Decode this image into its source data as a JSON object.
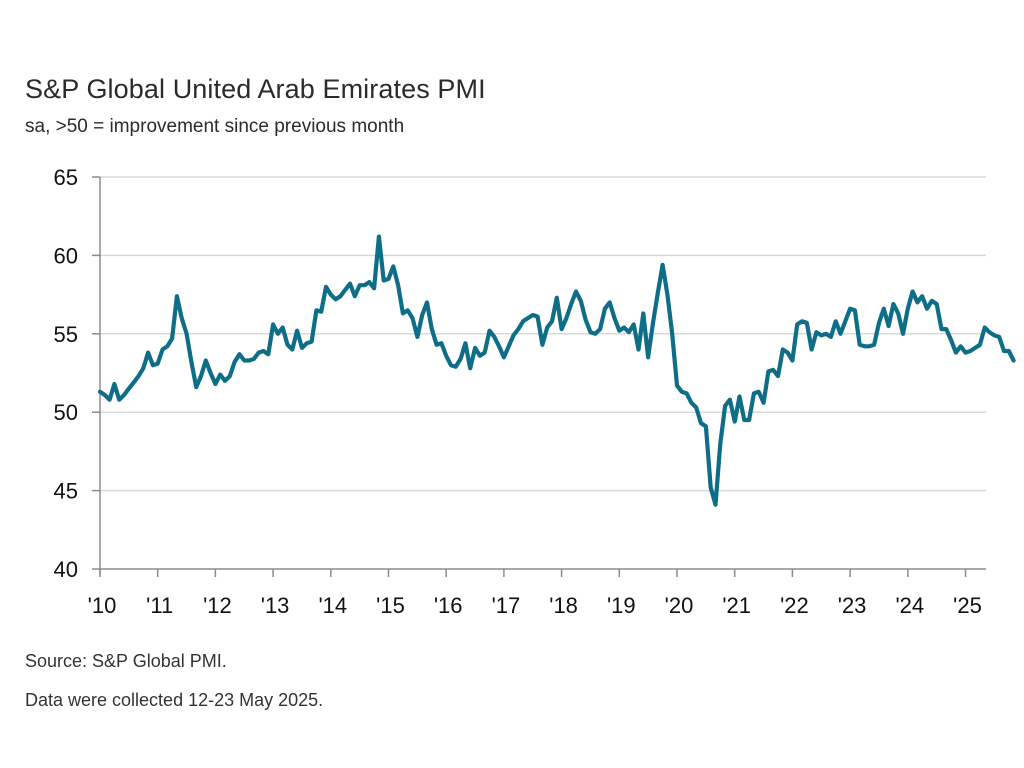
{
  "header": {
    "title": "S&P Global United Arab Emirates PMI",
    "subtitle": "sa, >50 = improvement since previous month"
  },
  "footer": {
    "source": "Source: S&P Global PMI.",
    "note": "Data were collected 12-23 May 2025."
  },
  "colors": {
    "line": "#0f6e87",
    "grid": "#d9d9d9",
    "axis": "#8c8c8c"
  },
  "chart_data": {
    "type": "line",
    "title": "S&P Global United Arab Emirates PMI",
    "subtitle": "sa, >50 = improvement since previous month",
    "xlabel": "",
    "ylabel": "",
    "ylim": [
      40,
      65
    ],
    "yticks": [
      "40",
      "45",
      "50",
      "55",
      "60",
      "65"
    ],
    "xticks": [
      "'10",
      "'11",
      "'12",
      "'13",
      "'14",
      "'15",
      "'16",
      "'17",
      "'18",
      "'19",
      "'20",
      "'21",
      "'22",
      "'23",
      "'24",
      "'25"
    ],
    "x_start": "2010-01",
    "frequency": "monthly",
    "grid": "horizontal",
    "legend": "none",
    "series": [
      {
        "name": "United Arab Emirates PMI",
        "values": [
          51.3,
          51.1,
          50.8,
          51.8,
          50.8,
          51.1,
          51.5,
          51.9,
          52.3,
          52.8,
          53.8,
          53.0,
          53.1,
          54.0,
          54.2,
          54.7,
          57.4,
          56.0,
          55.0,
          53.2,
          51.6,
          52.3,
          53.3,
          52.5,
          51.8,
          52.4,
          52.0,
          52.3,
          53.2,
          53.7,
          53.3,
          53.3,
          53.4,
          53.8,
          53.9,
          53.7,
          55.6,
          55.0,
          55.4,
          54.3,
          54.0,
          55.2,
          54.1,
          54.4,
          54.5,
          56.5,
          56.4,
          58.0,
          57.5,
          57.2,
          57.4,
          57.8,
          58.2,
          57.4,
          58.1,
          58.1,
          58.3,
          57.9,
          61.2,
          58.4,
          58.5,
          59.3,
          58.1,
          56.3,
          56.5,
          56.0,
          54.8,
          56.2,
          57.0,
          55.3,
          54.3,
          54.4,
          53.6,
          53.0,
          52.9,
          53.4,
          54.4,
          52.8,
          54.1,
          53.6,
          53.8,
          55.2,
          54.8,
          54.2,
          53.5,
          54.2,
          54.9,
          55.3,
          55.8,
          56.0,
          56.2,
          56.1,
          54.3,
          55.4,
          55.8,
          57.3,
          55.3,
          56.0,
          56.9,
          57.7,
          57.1,
          55.9,
          55.1,
          55.0,
          55.3,
          56.6,
          57.0,
          56.0,
          55.2,
          55.4,
          55.1,
          55.6,
          54.0,
          56.3,
          53.5,
          55.7,
          57.6,
          59.4,
          57.5,
          55.0,
          51.7,
          51.3,
          51.2,
          50.6,
          50.3,
          49.3,
          49.1,
          45.2,
          44.1,
          48.0,
          50.4,
          50.8,
          49.4,
          51.0,
          49.5,
          49.5,
          51.2,
          51.3,
          50.6,
          52.6,
          52.7,
          52.3,
          54.0,
          53.8,
          53.3,
          55.6,
          55.8,
          55.7,
          54.0,
          55.1,
          54.9,
          55.0,
          54.8,
          55.8,
          55.0,
          55.8,
          56.6,
          56.5,
          54.3,
          54.2,
          54.2,
          54.3,
          55.7,
          56.6,
          55.5,
          56.9,
          56.3,
          55.0,
          56.6,
          57.7,
          57.0,
          57.4,
          56.6,
          57.1,
          56.9,
          55.3,
          55.3,
          54.6,
          53.8,
          54.2,
          53.8,
          53.9,
          54.1,
          54.3,
          55.4,
          55.1,
          54.9,
          54.8,
          53.9,
          53.9,
          53.3
        ]
      }
    ]
  }
}
